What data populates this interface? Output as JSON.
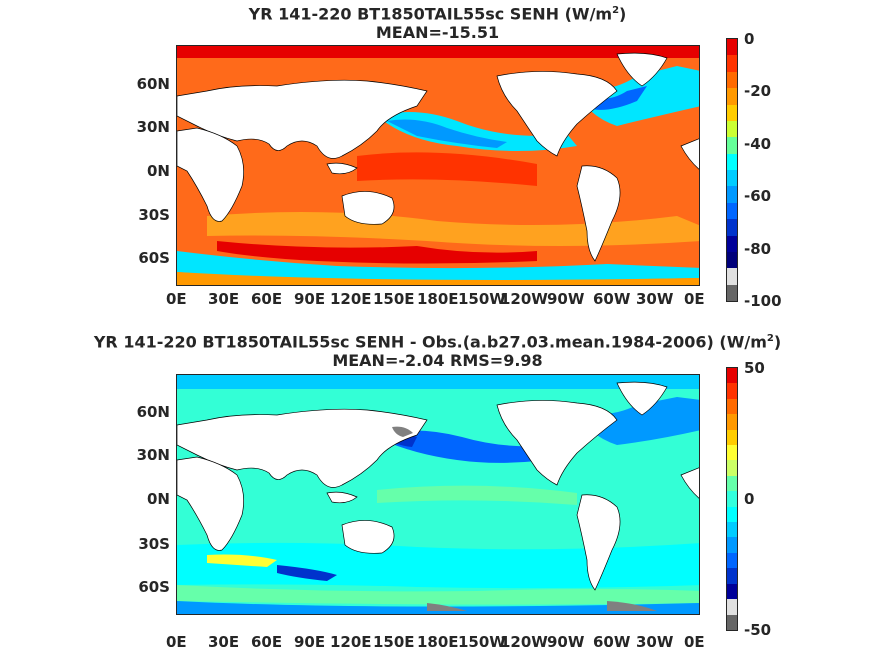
{
  "panels": [
    {
      "title_line1": "YR 141-220 BT1850TAIL55sc  SENH (W/m",
      "title_sup": "2",
      "title_close": ")",
      "title_line2": "MEAN=-15.51",
      "colorbar_ticks": [
        "0",
        "-20",
        "-40",
        "-60",
        "-80",
        "-100"
      ],
      "colorbar_colors": [
        "#e60000",
        "#ff3300",
        "#ff6a00",
        "#ff9900",
        "#ffcc00",
        "#ccff33",
        "#66ff99",
        "#00ffff",
        "#00ccff",
        "#0099ff",
        "#0066ff",
        "#0033cc",
        "#000099",
        "#00007a",
        "#e0e0e0",
        "#666666"
      ],
      "colors": {
        "ocean": "#ff6a1a",
        "ocean_light": "#ffa21f",
        "cold": "#00e6ff",
        "cool": "#0099ff"
      }
    },
    {
      "title_line1": "YR 141-220 BT1850TAIL55sc SENH - Obs.(a.b27.03.mean.1984-2006) (W/m",
      "title_sup": "2",
      "title_close": ")",
      "title_line2": "MEAN=-2.04 RMS=9.98",
      "colorbar_ticks": [
        "50",
        "0",
        "-50"
      ],
      "colorbar_colors": [
        "#e60000",
        "#ff3300",
        "#ff6a00",
        "#ff9900",
        "#ffcc00",
        "#ffff33",
        "#ccff66",
        "#66ffaa",
        "#33ffdd",
        "#00ffff",
        "#00ccff",
        "#0099ff",
        "#0066ff",
        "#0033cc",
        "#000099",
        "#e0e0e0",
        "#666666"
      ],
      "colors": {
        "ocean": "#33ffd6",
        "ocean_light": "#66ffaa",
        "cold": "#0099ff",
        "cool": "#00ffff"
      }
    }
  ],
  "lat_labels": [
    "60N",
    "30N",
    "0N",
    "30S",
    "60S"
  ],
  "lon_labels": [
    "0E",
    "30E",
    "60E",
    "90E",
    "120E",
    "150E",
    "180E",
    "150W",
    "120W",
    "90W",
    "60W",
    "30W",
    "0E"
  ]
}
